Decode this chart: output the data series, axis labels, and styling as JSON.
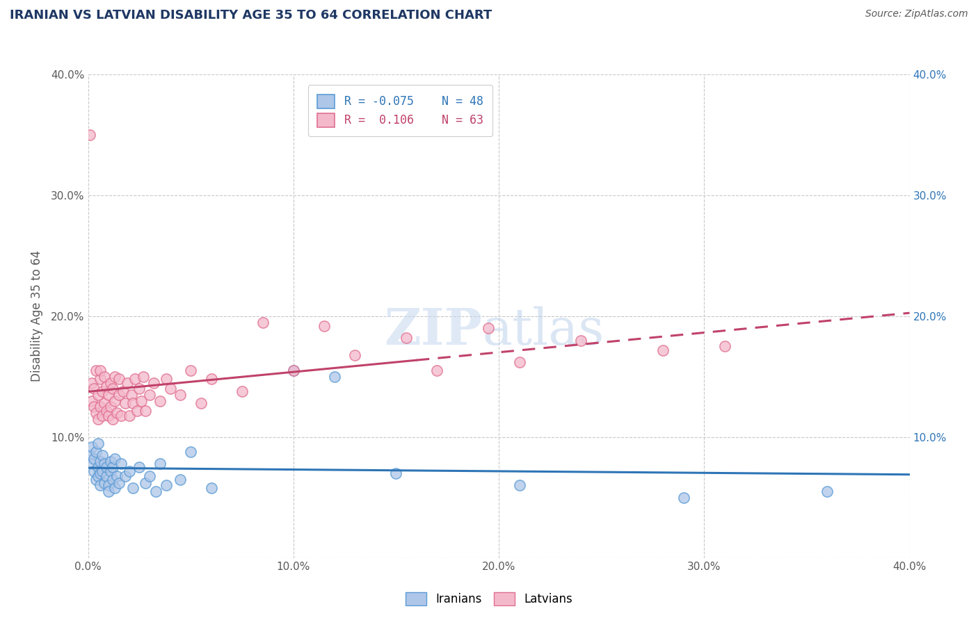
{
  "title": "IRANIAN VS LATVIAN DISABILITY AGE 35 TO 64 CORRELATION CHART",
  "source_text": "Source: ZipAtlas.com",
  "ylabel": "Disability Age 35 to 64",
  "watermark_zip": "ZIP",
  "watermark_atlas": "atlas",
  "xlim": [
    0.0,
    0.4
  ],
  "ylim": [
    0.0,
    0.4
  ],
  "xtick_labels": [
    "0.0%",
    "10.0%",
    "20.0%",
    "30.0%",
    "40.0%"
  ],
  "xtick_vals": [
    0.0,
    0.1,
    0.2,
    0.3,
    0.4
  ],
  "ytick_labels": [
    "",
    "10.0%",
    "20.0%",
    "30.0%",
    "40.0%"
  ],
  "ytick_vals": [
    0.0,
    0.1,
    0.2,
    0.3,
    0.4
  ],
  "right_ytick_labels": [
    "",
    "10.0%",
    "20.0%",
    "30.0%",
    "40.0%"
  ],
  "legend_r_iranian": "-0.075",
  "legend_n_iranian": "48",
  "legend_r_latvian": "0.106",
  "legend_n_latvian": "63",
  "iranian_color": "#aec6e8",
  "latvian_color": "#f4b8cb",
  "iranian_edge_color": "#5b9bd5",
  "latvian_edge_color": "#e07090",
  "trendline_iranian_color": "#2e75b6",
  "trendline_latvian_color": "#c0426a",
  "background_color": "#ffffff",
  "grid_color": "#c8c8c8",
  "title_color": "#1f3864",
  "axis_label_color": "#595959",
  "iranians_x": [
    0.001,
    0.002,
    0.002,
    0.003,
    0.003,
    0.004,
    0.004,
    0.005,
    0.005,
    0.005,
    0.006,
    0.006,
    0.006,
    0.007,
    0.007,
    0.008,
    0.008,
    0.009,
    0.009,
    0.01,
    0.01,
    0.011,
    0.011,
    0.012,
    0.012,
    0.013,
    0.013,
    0.014,
    0.015,
    0.016,
    0.018,
    0.02,
    0.022,
    0.025,
    0.028,
    0.03,
    0.033,
    0.035,
    0.038,
    0.045,
    0.05,
    0.06,
    0.1,
    0.12,
    0.15,
    0.21,
    0.29,
    0.36
  ],
  "iranians_y": [
    0.085,
    0.078,
    0.092,
    0.072,
    0.082,
    0.065,
    0.088,
    0.075,
    0.068,
    0.095,
    0.06,
    0.08,
    0.07,
    0.072,
    0.085,
    0.062,
    0.078,
    0.068,
    0.075,
    0.06,
    0.055,
    0.072,
    0.08,
    0.065,
    0.075,
    0.058,
    0.082,
    0.068,
    0.062,
    0.078,
    0.068,
    0.072,
    0.058,
    0.075,
    0.062,
    0.068,
    0.055,
    0.078,
    0.06,
    0.065,
    0.088,
    0.058,
    0.155,
    0.15,
    0.07,
    0.06,
    0.05,
    0.055
  ],
  "latvians_x": [
    0.001,
    0.002,
    0.002,
    0.003,
    0.003,
    0.004,
    0.004,
    0.005,
    0.005,
    0.006,
    0.006,
    0.006,
    0.007,
    0.007,
    0.008,
    0.008,
    0.009,
    0.009,
    0.01,
    0.01,
    0.011,
    0.011,
    0.012,
    0.012,
    0.013,
    0.013,
    0.014,
    0.015,
    0.015,
    0.016,
    0.017,
    0.018,
    0.019,
    0.02,
    0.021,
    0.022,
    0.023,
    0.024,
    0.025,
    0.026,
    0.027,
    0.028,
    0.03,
    0.032,
    0.035,
    0.038,
    0.04,
    0.045,
    0.05,
    0.055,
    0.06,
    0.075,
    0.085,
    0.1,
    0.115,
    0.13,
    0.155,
    0.17,
    0.195,
    0.21,
    0.24,
    0.28,
    0.31
  ],
  "latvians_y": [
    0.35,
    0.13,
    0.145,
    0.125,
    0.14,
    0.12,
    0.155,
    0.115,
    0.135,
    0.148,
    0.125,
    0.155,
    0.118,
    0.138,
    0.128,
    0.15,
    0.122,
    0.142,
    0.118,
    0.135,
    0.145,
    0.125,
    0.115,
    0.14,
    0.13,
    0.15,
    0.12,
    0.135,
    0.148,
    0.118,
    0.138,
    0.128,
    0.145,
    0.118,
    0.135,
    0.128,
    0.148,
    0.122,
    0.14,
    0.13,
    0.15,
    0.122,
    0.135,
    0.145,
    0.13,
    0.148,
    0.14,
    0.135,
    0.155,
    0.128,
    0.148,
    0.138,
    0.195,
    0.155,
    0.192,
    0.168,
    0.182,
    0.155,
    0.19,
    0.162,
    0.18,
    0.172,
    0.175
  ]
}
